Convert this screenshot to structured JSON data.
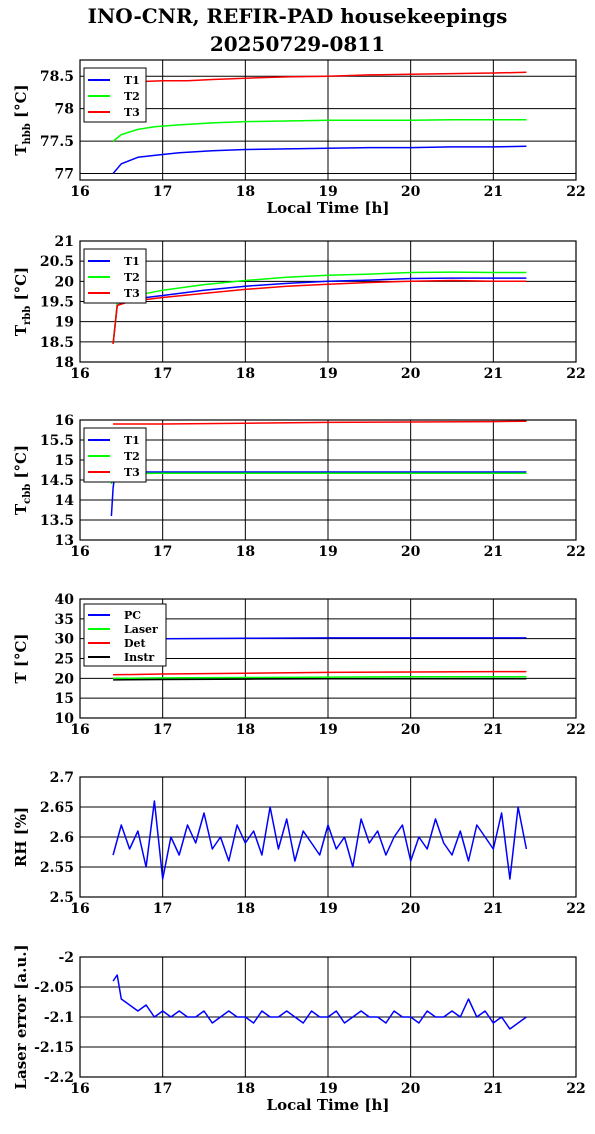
{
  "title": "INO-CNR, REFIR-PAD housekeepings",
  "subtitle": "20250729-0811",
  "chart_data": [
    {
      "type": "line",
      "ylabel_main": "T",
      "ylabel_sub": "hbb",
      "ylabel_unit": "[°C]",
      "xlabel": "Local Time [h]",
      "xlim": [
        16,
        22
      ],
      "ylim": [
        76.9,
        78.75
      ],
      "yticks": [
        77,
        77.5,
        78,
        78.5
      ],
      "ytick_labels": [
        "77",
        "77.5",
        "78",
        "78.5"
      ],
      "xticks": [
        16,
        17,
        18,
        19,
        20,
        21,
        22
      ],
      "grid": true,
      "legend_position": "top-left",
      "series": [
        {
          "name": "T1",
          "color": "#0000ff",
          "x": [
            16.4,
            16.5,
            16.7,
            16.9,
            17.2,
            17.6,
            18.0,
            18.5,
            19.0,
            19.5,
            20.0,
            20.5,
            21.0,
            21.4
          ],
          "y": [
            77.0,
            77.15,
            77.25,
            77.28,
            77.32,
            77.35,
            77.37,
            77.38,
            77.39,
            77.4,
            77.4,
            77.41,
            77.41,
            77.42
          ]
        },
        {
          "name": "T2",
          "color": "#00ff00",
          "x": [
            16.4,
            16.5,
            16.7,
            16.9,
            17.2,
            17.6,
            18.0,
            18.5,
            19.0,
            19.5,
            20.0,
            20.5,
            21.0,
            21.4
          ],
          "y": [
            77.5,
            77.6,
            77.68,
            77.72,
            77.75,
            77.78,
            77.8,
            77.81,
            77.82,
            77.82,
            77.82,
            77.83,
            77.83,
            77.83
          ]
        },
        {
          "name": "T3",
          "color": "#ff0000",
          "x": [
            16.8,
            17.0,
            17.3,
            17.6,
            18.0,
            18.5,
            19.0,
            19.5,
            20.0,
            20.5,
            21.0,
            21.4
          ],
          "y": [
            78.42,
            78.43,
            78.43,
            78.45,
            78.47,
            78.49,
            78.5,
            78.52,
            78.53,
            78.54,
            78.55,
            78.56
          ]
        }
      ]
    },
    {
      "type": "line",
      "ylabel_main": "T",
      "ylabel_sub": "rbb",
      "ylabel_unit": "[°C]",
      "xlim": [
        16,
        22
      ],
      "ylim": [
        18,
        21
      ],
      "yticks": [
        18,
        18.5,
        19,
        19.5,
        20,
        20.5,
        21
      ],
      "ytick_labels": [
        "18",
        "18.5",
        "19",
        "19.5",
        "20",
        "20.5",
        "21"
      ],
      "xticks": [
        16,
        17,
        18,
        19,
        20,
        21,
        22
      ],
      "grid": true,
      "legend_position": "top-left",
      "series": [
        {
          "name": "T1",
          "color": "#0000ff",
          "x": [
            16.4,
            16.45,
            16.6,
            17.0,
            17.5,
            18.0,
            18.5,
            19.0,
            19.5,
            20.0,
            20.5,
            21.0,
            21.4
          ],
          "y": [
            18.45,
            19.4,
            19.55,
            19.65,
            19.78,
            19.88,
            19.95,
            20.0,
            20.03,
            20.07,
            20.08,
            20.08,
            20.08
          ]
        },
        {
          "name": "T2",
          "color": "#00ff00",
          "x": [
            16.4,
            16.45,
            16.6,
            17.0,
            17.5,
            18.0,
            18.5,
            19.0,
            19.5,
            20.0,
            20.5,
            21.0,
            21.4
          ],
          "y": [
            18.45,
            19.45,
            19.62,
            19.78,
            19.92,
            20.02,
            20.1,
            20.15,
            20.18,
            20.22,
            20.23,
            20.22,
            20.22
          ]
        },
        {
          "name": "T3",
          "color": "#ff0000",
          "x": [
            16.4,
            16.45,
            16.6,
            17.0,
            17.5,
            18.0,
            18.5,
            19.0,
            19.5,
            20.0,
            20.5,
            21.0,
            21.4
          ],
          "y": [
            18.45,
            19.4,
            19.5,
            19.6,
            19.7,
            19.8,
            19.88,
            19.93,
            19.97,
            20.0,
            20.02,
            20.0,
            20.0
          ]
        }
      ]
    },
    {
      "type": "line",
      "ylabel_main": "T",
      "ylabel_sub": "cbb",
      "ylabel_unit": "[°C]",
      "xlim": [
        16,
        22
      ],
      "ylim": [
        13,
        16
      ],
      "yticks": [
        13,
        13.5,
        14,
        14.5,
        15,
        15.5,
        16
      ],
      "ytick_labels": [
        "13",
        "13.5",
        "14",
        "14.5",
        "15",
        "15.5",
        "16"
      ],
      "xticks": [
        16,
        17,
        18,
        19,
        20,
        21,
        22
      ],
      "grid": true,
      "legend_position": "top-left",
      "series": [
        {
          "name": "T1",
          "color": "#0000ff",
          "x": [
            16.38,
            16.4,
            16.42,
            16.5,
            17.0,
            18.0,
            19.0,
            20.0,
            21.0,
            21.4
          ],
          "y": [
            13.6,
            14.3,
            14.6,
            14.7,
            14.7,
            14.7,
            14.7,
            14.7,
            14.7,
            14.7
          ]
        },
        {
          "name": "T2",
          "color": "#00ff00",
          "x": [
            16.38,
            16.4,
            16.42,
            16.5,
            17.0,
            18.0,
            19.0,
            20.0,
            21.0,
            21.4
          ],
          "y": [
            14.4,
            14.55,
            14.62,
            14.66,
            14.67,
            14.67,
            14.67,
            14.67,
            14.67,
            14.67
          ]
        },
        {
          "name": "T3",
          "color": "#ff0000",
          "x": [
            16.4,
            17.0,
            18.0,
            19.0,
            20.0,
            21.0,
            21.4
          ],
          "y": [
            15.9,
            15.9,
            15.92,
            15.94,
            15.95,
            15.96,
            15.97
          ]
        }
      ]
    },
    {
      "type": "line",
      "ylabel_main": "T [°C]",
      "ylabel_sub": "",
      "ylabel_unit": "",
      "xlim": [
        16,
        22
      ],
      "ylim": [
        10,
        40
      ],
      "yticks": [
        10,
        15,
        20,
        25,
        30,
        35,
        40
      ],
      "ytick_labels": [
        "10",
        "15",
        "20",
        "25",
        "30",
        "35",
        "40"
      ],
      "xticks": [
        16,
        17,
        18,
        19,
        20,
        21,
        22
      ],
      "grid": true,
      "legend_position": "top-left",
      "series": [
        {
          "name": "PC",
          "color": "#0000ff",
          "x": [
            16.4,
            17.0,
            18.0,
            19.0,
            20.0,
            21.0,
            21.4
          ],
          "y": [
            30.0,
            30.0,
            30.1,
            30.2,
            30.2,
            30.2,
            30.2
          ]
        },
        {
          "name": "Laser",
          "color": "#00ff00",
          "x": [
            16.4,
            17.0,
            18.0,
            19.0,
            20.0,
            21.0,
            21.4
          ],
          "y": [
            20.0,
            20.1,
            20.2,
            20.3,
            20.4,
            20.4,
            20.4
          ]
        },
        {
          "name": "Det",
          "color": "#ff0000",
          "x": [
            16.4,
            17.0,
            18.0,
            19.0,
            20.0,
            21.0,
            21.4
          ],
          "y": [
            20.9,
            21.1,
            21.3,
            21.5,
            21.6,
            21.7,
            21.7
          ]
        },
        {
          "name": "Instr",
          "color": "#000000",
          "x": [
            16.4,
            17.0,
            18.0,
            19.0,
            20.0,
            21.0,
            21.4
          ],
          "y": [
            19.6,
            19.7,
            19.8,
            19.9,
            19.9,
            19.9,
            19.9
          ]
        }
      ]
    },
    {
      "type": "line",
      "ylabel_main": "RH [%]",
      "ylabel_sub": "",
      "ylabel_unit": "",
      "xlim": [
        16,
        22
      ],
      "ylim": [
        2.5,
        2.7
      ],
      "yticks": [
        2.5,
        2.55,
        2.6,
        2.65,
        2.7
      ],
      "ytick_labels": [
        "2.5",
        "2.55",
        "2.6",
        "2.65",
        "2.7"
      ],
      "xticks": [
        16,
        17,
        18,
        19,
        20,
        21,
        22
      ],
      "grid": true,
      "series": [
        {
          "color": "#0000ff",
          "x": [
            16.4,
            16.5,
            16.6,
            16.7,
            16.8,
            16.9,
            17.0,
            17.1,
            17.2,
            17.3,
            17.4,
            17.5,
            17.6,
            17.7,
            17.8,
            17.9,
            18.0,
            18.1,
            18.2,
            18.3,
            18.4,
            18.5,
            18.6,
            18.7,
            18.8,
            18.9,
            19.0,
            19.1,
            19.2,
            19.3,
            19.4,
            19.5,
            19.6,
            19.7,
            19.8,
            19.9,
            20.0,
            20.1,
            20.2,
            20.3,
            20.4,
            20.5,
            20.6,
            20.7,
            20.8,
            20.9,
            21.0,
            21.1,
            21.2,
            21.3,
            21.4
          ],
          "y": [
            2.57,
            2.62,
            2.58,
            2.61,
            2.55,
            2.66,
            2.53,
            2.6,
            2.57,
            2.62,
            2.59,
            2.64,
            2.58,
            2.6,
            2.56,
            2.62,
            2.59,
            2.61,
            2.57,
            2.65,
            2.58,
            2.63,
            2.56,
            2.61,
            2.59,
            2.57,
            2.62,
            2.58,
            2.6,
            2.55,
            2.63,
            2.59,
            2.61,
            2.57,
            2.6,
            2.62,
            2.56,
            2.6,
            2.58,
            2.63,
            2.59,
            2.57,
            2.61,
            2.56,
            2.62,
            2.6,
            2.58,
            2.64,
            2.53,
            2.65,
            2.58
          ]
        }
      ]
    },
    {
      "type": "line",
      "ylabel_main": "Laser error [a.u.]",
      "ylabel_sub": "",
      "ylabel_unit": "",
      "xlabel": "Local Time [h]",
      "xlim": [
        16,
        22
      ],
      "ylim": [
        -2.2,
        -2.0
      ],
      "yticks": [
        -2.2,
        -2.15,
        -2.1,
        -2.05,
        -2.0
      ],
      "ytick_labels": [
        "-2.2",
        "-2.15",
        "-2.1",
        "-2.05",
        "-2"
      ],
      "xticks": [
        16,
        17,
        18,
        19,
        20,
        21,
        22
      ],
      "grid": true,
      "series": [
        {
          "color": "#0000ff",
          "x": [
            16.4,
            16.45,
            16.5,
            16.6,
            16.7,
            16.8,
            16.9,
            17.0,
            17.1,
            17.2,
            17.3,
            17.4,
            17.5,
            17.6,
            17.7,
            17.8,
            17.9,
            18.0,
            18.1,
            18.2,
            18.3,
            18.4,
            18.5,
            18.6,
            18.7,
            18.8,
            18.9,
            19.0,
            19.1,
            19.2,
            19.3,
            19.4,
            19.5,
            19.6,
            19.7,
            19.8,
            19.9,
            20.0,
            20.1,
            20.2,
            20.3,
            20.4,
            20.5,
            20.6,
            20.7,
            20.8,
            20.9,
            21.0,
            21.1,
            21.2,
            21.3,
            21.4
          ],
          "y": [
            -2.04,
            -2.03,
            -2.07,
            -2.08,
            -2.09,
            -2.08,
            -2.1,
            -2.09,
            -2.1,
            -2.09,
            -2.1,
            -2.1,
            -2.09,
            -2.11,
            -2.1,
            -2.09,
            -2.1,
            -2.1,
            -2.11,
            -2.09,
            -2.1,
            -2.1,
            -2.09,
            -2.1,
            -2.11,
            -2.09,
            -2.1,
            -2.1,
            -2.09,
            -2.11,
            -2.1,
            -2.09,
            -2.1,
            -2.1,
            -2.11,
            -2.09,
            -2.1,
            -2.1,
            -2.11,
            -2.09,
            -2.1,
            -2.1,
            -2.09,
            -2.1,
            -2.07,
            -2.1,
            -2.09,
            -2.11,
            -2.1,
            -2.12,
            -2.11,
            -2.1
          ]
        }
      ]
    }
  ]
}
